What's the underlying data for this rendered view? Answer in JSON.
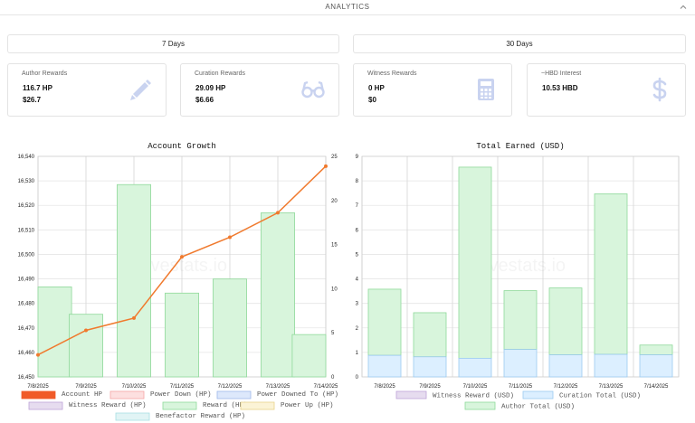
{
  "header": {
    "title": "ANALYTICS",
    "collapse_icon": "chevron-up-icon"
  },
  "periods": [
    {
      "label": "7 Days"
    },
    {
      "label": "30 Days"
    }
  ],
  "cards": [
    {
      "label": "Author Rewards",
      "value1": "116.7 HP",
      "value2": "$26.7",
      "icon": "pencil-icon"
    },
    {
      "label": "Curation Rewards",
      "value1": "29.09 HP",
      "value2": "$6.66",
      "icon": "glasses-icon"
    },
    {
      "label": "Witness Rewards",
      "value1": "0 HP",
      "value2": "$0",
      "icon": "calculator-icon"
    },
    {
      "label": "~HBD Interest",
      "value1": "10.53 HBD",
      "value2": "",
      "icon": "dollar-icon"
    }
  ],
  "watermark": "hivestats.io",
  "colors": {
    "icon": "#c9d3f0",
    "line": "#f07a2e",
    "green_fill": "#d8f5dc",
    "green_stroke": "#8fd99a",
    "blue_fill": "#dcefff",
    "blue_stroke": "#9ccaf0"
  },
  "chart_data": [
    {
      "type": "bar",
      "title": "Account Growth",
      "categories": [
        "7/8/2025",
        "7/9/2025",
        "7/10/2025",
        "7/11/2025",
        "7/12/2025",
        "7/13/2025",
        "7/14/2025"
      ],
      "y_left": {
        "min": 16450,
        "max": 16540,
        "ticks": [
          "16,450",
          "16,460",
          "16,470",
          "16,480",
          "16,490",
          "16,500",
          "16,510",
          "16,520",
          "16,530",
          "16,540"
        ]
      },
      "y_right": {
        "min": 0,
        "max": 25,
        "ticks": [
          "0",
          "5",
          "10",
          "15",
          "20",
          "25"
        ]
      },
      "series": [
        {
          "name": "Account HP",
          "type": "line",
          "axis": "left",
          "values": [
            16459,
            16469,
            16474,
            16499,
            16507,
            16517,
            16536
          ]
        },
        {
          "name": "Reward (HP)",
          "type": "bar",
          "axis": "right",
          "values": [
            10.2,
            7.1,
            21.8,
            9.5,
            11.1,
            18.6,
            4.8
          ]
        }
      ],
      "legend": [
        {
          "name": "Account HP",
          "color": "#f05a28",
          "border": "#f05a28"
        },
        {
          "name": "Power Down (HP)",
          "color": "#fde0e0",
          "border": "#f4a6a6"
        },
        {
          "name": "Power Downed To (HP)",
          "color": "#dde8fb",
          "border": "#9fb8ea"
        },
        {
          "name": "Witness Reward (HP)",
          "color": "#e6dcef",
          "border": "#bfa4d8"
        },
        {
          "name": "Reward (HP)",
          "color": "#d8f5dc",
          "border": "#8fd99a"
        },
        {
          "name": "Power Up (HP)",
          "color": "#fbf3d6",
          "border": "#e8d38a"
        },
        {
          "name": "Benefactor Reward (HP)",
          "color": "#e1f4f5",
          "border": "#a8dfe3"
        }
      ]
    },
    {
      "type": "bar",
      "title": "Total Earned (USD)",
      "categories": [
        "7/8/2025",
        "7/9/2025",
        "7/10/2025",
        "7/11/2025",
        "7/12/2025",
        "7/13/2025",
        "7/14/2025"
      ],
      "y": {
        "min": 0,
        "max": 9,
        "ticks": [
          "0",
          "1",
          "2",
          "3",
          "4",
          "5",
          "6",
          "7",
          "8",
          "9"
        ]
      },
      "stacked": true,
      "series": [
        {
          "name": "Witness Reward (USD)",
          "values": [
            0,
            0,
            0,
            0,
            0,
            0,
            0
          ]
        },
        {
          "name": "Curation Total (USD)",
          "values": [
            0.88,
            0.82,
            0.76,
            1.12,
            0.9,
            0.92,
            0.9
          ]
        },
        {
          "name": "Author Total (USD)",
          "values": [
            2.7,
            1.8,
            7.8,
            2.4,
            2.73,
            6.55,
            0.4
          ]
        }
      ],
      "legend": [
        {
          "name": "Witness Reward (USD)",
          "color": "#e6dcef",
          "border": "#bfa4d8"
        },
        {
          "name": "Curation Total (USD)",
          "color": "#dcefff",
          "border": "#9ccaf0"
        },
        {
          "name": "Author Total (USD)",
          "color": "#d8f5dc",
          "border": "#8fd99a"
        }
      ]
    }
  ]
}
